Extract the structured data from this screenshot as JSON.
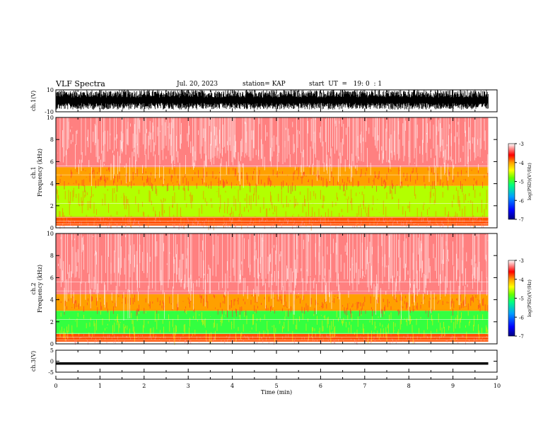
{
  "header": {
    "title": "VLF Spectra",
    "date": "Jul. 20, 2023",
    "station": "station= KAP",
    "start": "start  UT  =   19: 0  : 1"
  },
  "colors": {
    "colormap": [
      "#000080",
      "#0000ff",
      "#00a0ff",
      "#00ff80",
      "#66ff00",
      "#ffff00",
      "#ffa000",
      "#ff0000",
      "#ffffff"
    ]
  },
  "chart_data": [
    {
      "type": "line",
      "panel": "ch1-waveform",
      "ylabel": "ch.1(V)",
      "ylim": [
        -10,
        10
      ],
      "yticks": [
        -10,
        10
      ],
      "xlim": [
        0,
        10
      ],
      "description_values": "dense waveform saturating roughly -8 to +10 V over 0-9.8 min"
    },
    {
      "type": "heatmap",
      "panel": "ch1-spectrogram",
      "ylabel": "ch.1\nFrequency  (kHz)",
      "ylim": [
        0,
        10
      ],
      "yticks": [
        0,
        2,
        4,
        6,
        8,
        10
      ],
      "xlim": [
        0,
        10
      ],
      "data_end_min": 9.8,
      "bands": [
        {
          "f_min": 0.2,
          "f_max": 1.0,
          "log_psd": -3.8
        },
        {
          "f_min": 1.0,
          "f_max": 3.8,
          "log_psd": -4.6
        },
        {
          "f_min": 3.8,
          "f_max": 5.5,
          "log_psd": -4.0
        },
        {
          "f_min": 5.5,
          "f_max": 10.0,
          "log_psd": -3.3
        }
      ],
      "colorbar": {
        "label": "log(PSD)(V²/Hz)",
        "range": [
          -7,
          -3
        ],
        "ticks": [
          "-3",
          "-4",
          "-5",
          "-6",
          "-7"
        ]
      }
    },
    {
      "type": "heatmap",
      "panel": "ch2-spectrogram",
      "ylabel": "ch.2\nFrequency  (kHz)",
      "ylim": [
        0,
        10
      ],
      "yticks": [
        0,
        2,
        4,
        6,
        8,
        10
      ],
      "xlim": [
        0,
        10
      ],
      "data_end_min": 9.8,
      "bands": [
        {
          "f_min": 0.2,
          "f_max": 0.9,
          "log_psd": -3.8
        },
        {
          "f_min": 0.9,
          "f_max": 3.0,
          "log_psd": -5.0
        },
        {
          "f_min": 3.0,
          "f_max": 4.5,
          "log_psd": -4.0
        },
        {
          "f_min": 4.5,
          "f_max": 10.0,
          "log_psd": -3.3
        }
      ],
      "colorbar": {
        "label": "log(PSD)(V²/Hz)",
        "range": [
          -7,
          -3
        ],
        "ticks": [
          "-3",
          "-4",
          "-5",
          "-6",
          "-7"
        ]
      }
    },
    {
      "type": "line",
      "panel": "ch3-waveform",
      "ylabel": "ch.3(V)",
      "ylim": [
        -5,
        5
      ],
      "yticks": [
        -5,
        0,
        5
      ],
      "xlim": [
        0,
        10
      ],
      "xticks": [
        0,
        1,
        2,
        3,
        4,
        5,
        6,
        7,
        8,
        9,
        10
      ],
      "xlabel": "Time  (min)",
      "description_values": "constant offset near -1 V with small oscillation, 0-9.8 min"
    }
  ]
}
